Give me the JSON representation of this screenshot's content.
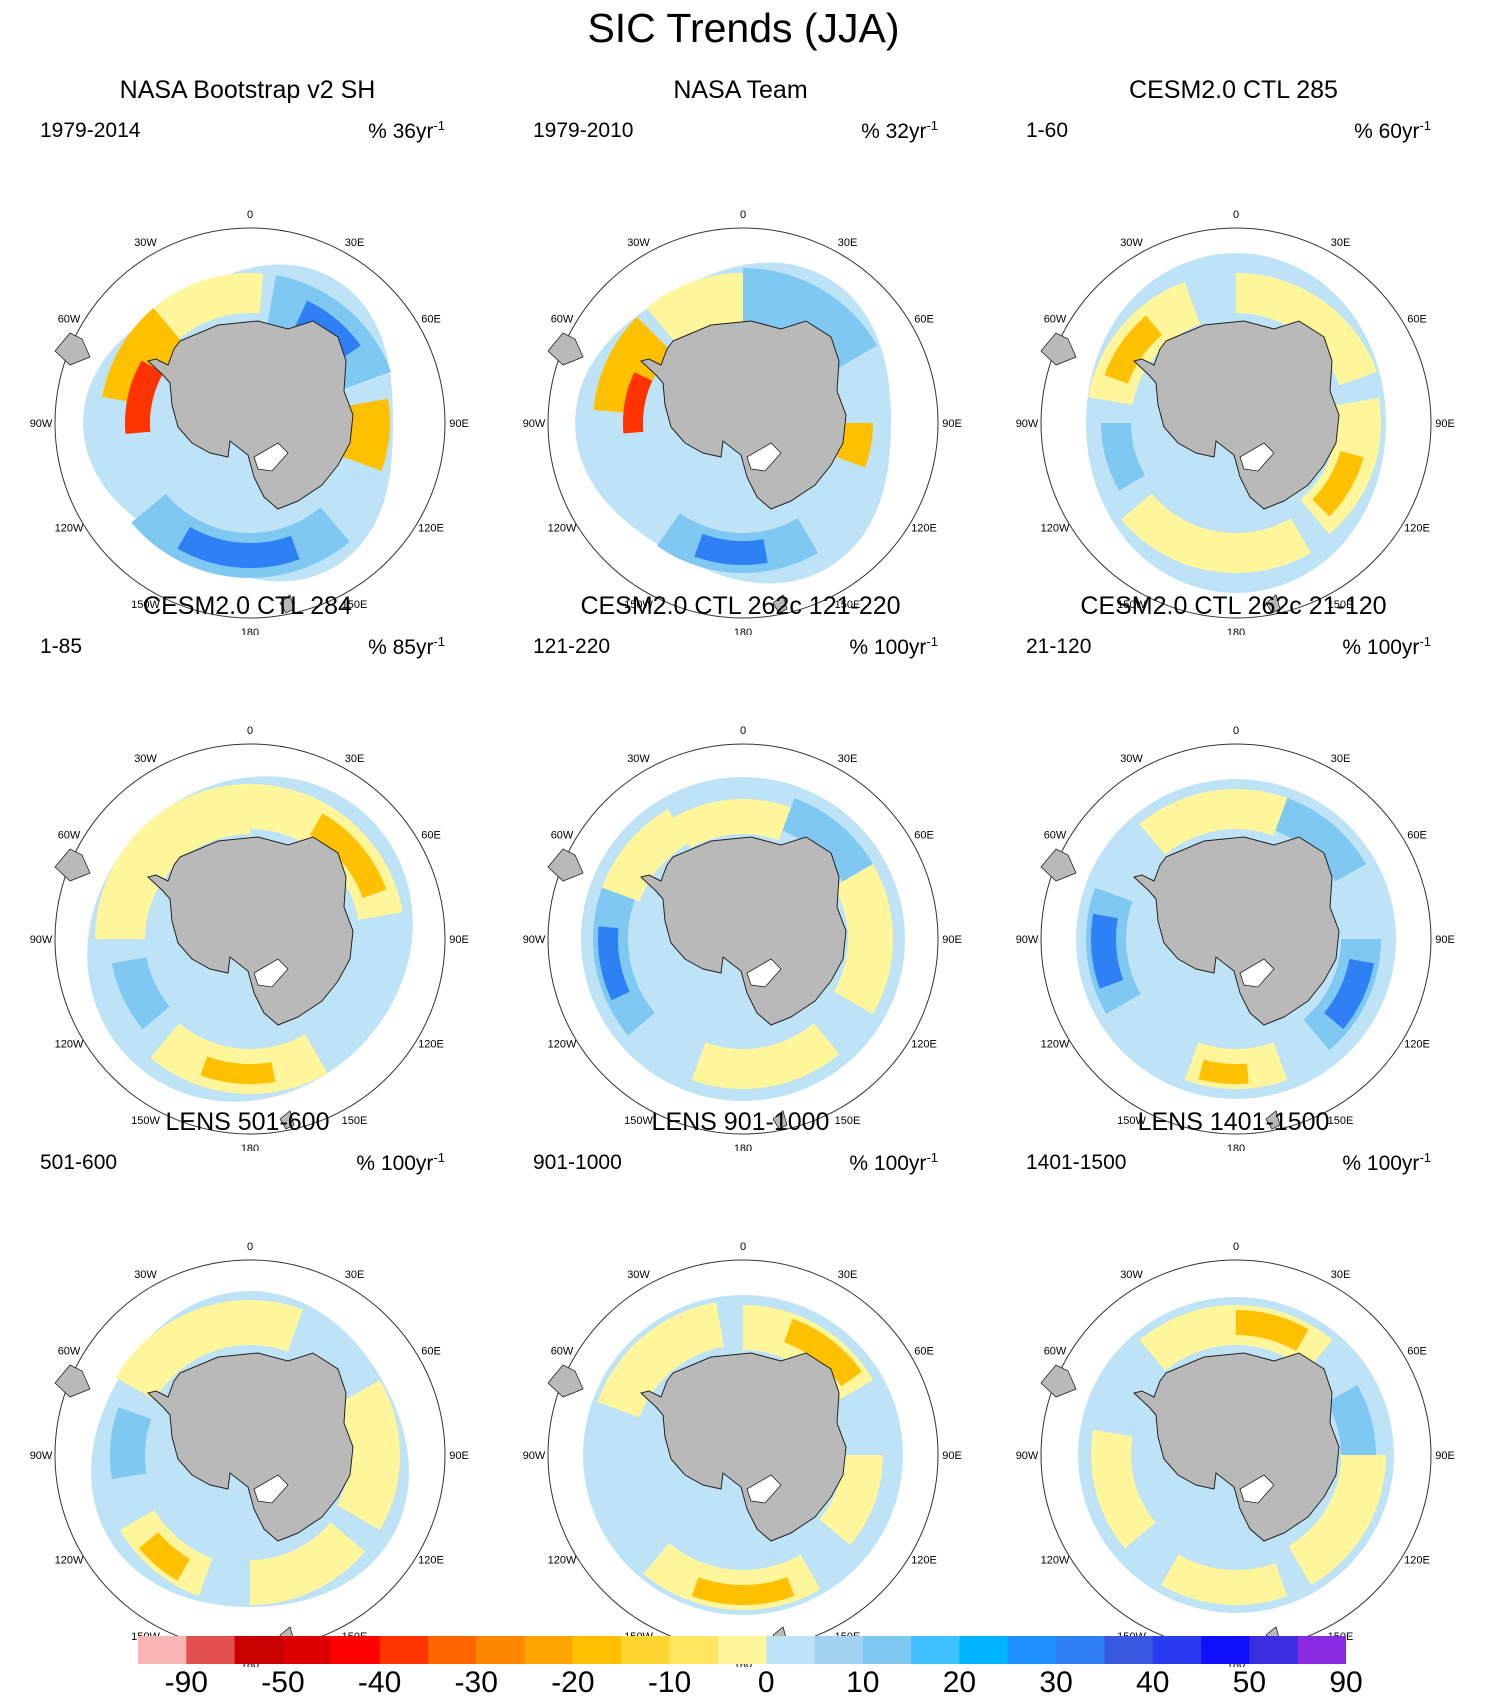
{
  "title": "SIC Trends (JJA)",
  "panels": [
    {
      "title": "NASA Bootstrap v2 SH",
      "years": "1979-2014",
      "unit_prefix": "% 36yr",
      "unit_exp": "-1",
      "pattern": "obs_bootstrap"
    },
    {
      "title": "NASA Team",
      "years": "1979-2010",
      "unit_prefix": "% 32yr",
      "unit_exp": "-1",
      "pattern": "obs_team"
    },
    {
      "title": "CESM2.0 CTL 285",
      "years": "1-60",
      "unit_prefix": "% 60yr",
      "unit_exp": "-1",
      "pattern": "ctl285"
    },
    {
      "title": "CESM2.0 CTL 284",
      "years": "1-85",
      "unit_prefix": "% 85yr",
      "unit_exp": "-1",
      "pattern": "ctl284"
    },
    {
      "title": "CESM2.0 CTL 262c 121-220",
      "years": "121-220",
      "unit_prefix": "% 100yr",
      "unit_exp": "-1",
      "pattern": "ctl262a"
    },
    {
      "title": "CESM2.0 CTL 262c 21-120",
      "years": "21-120",
      "unit_prefix": "% 100yr",
      "unit_exp": "-1",
      "pattern": "ctl262b"
    },
    {
      "title": "LENS 501-600",
      "years": "501-600",
      "unit_prefix": "% 100yr",
      "unit_exp": "-1",
      "pattern": "lens501"
    },
    {
      "title": "LENS 901-1000",
      "years": "901-1000",
      "unit_prefix": "% 100yr",
      "unit_exp": "-1",
      "pattern": "lens901"
    },
    {
      "title": "LENS 1401-1500",
      "years": "1401-1500",
      "unit_prefix": "% 100yr",
      "unit_exp": "-1",
      "pattern": "lens1401"
    }
  ],
  "longitude_labels": [
    "0",
    "30E",
    "60E",
    "90E",
    "120E",
    "150E",
    "180",
    "150W",
    "120W",
    "90W",
    "60W",
    "30W"
  ],
  "colorbar": {
    "colors": [
      "#f9b4b4",
      "#e25050",
      "#c80000",
      "#dd0000",
      "#ff0000",
      "#ff3300",
      "#ff6600",
      "#ff8800",
      "#ffa500",
      "#ffc000",
      "#ffd530",
      "#ffe660",
      "#fff59a",
      "#bfe3f6",
      "#a2d3f2",
      "#7ec8f2",
      "#40c2ff",
      "#00b4ff",
      "#1e90ff",
      "#2f7ff5",
      "#3659e0",
      "#2a3cf0",
      "#1010ff",
      "#3a2ee0",
      "#8a2be2"
    ],
    "labels": [
      "-90",
      "-50",
      "-40",
      "-30",
      "-20",
      "-10",
      "0",
      "10",
      "20",
      "30",
      "40",
      "50",
      "90"
    ]
  },
  "colors": {
    "land": "#b9b9b9",
    "sea_ice_increase_light": "#bfe3f6",
    "sea_ice_increase_mid": "#7ec8f2",
    "sea_ice_increase_strong": "#2f7ff5",
    "sea_ice_decrease_light": "#fff59a",
    "sea_ice_decrease_mid": "#ffc000",
    "sea_ice_decrease_strong": "#ff3300"
  }
}
